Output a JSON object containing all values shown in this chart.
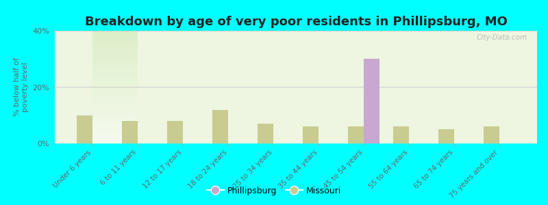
{
  "title": "Breakdown by age of very poor residents in Phillipsburg, MO",
  "ylabel": "% below half of\npoverty level",
  "categories": [
    "Under 6 years",
    "6 to 11 years",
    "12 to 17 years",
    "18 to 24 years",
    "25 to 34 years",
    "35 to 44 years",
    "45 to 54 years",
    "55 to 64 years",
    "65 to 74 years",
    "75 years and over"
  ],
  "phillipsburg_values": [
    0,
    0,
    0,
    0,
    0,
    0,
    30,
    0,
    0,
    0
  ],
  "missouri_values": [
    10,
    8,
    8,
    12,
    7,
    6,
    6,
    6,
    5,
    6
  ],
  "phillipsburg_color": "#c8a8d0",
  "missouri_color": "#c8cc90",
  "ylim": [
    0,
    40
  ],
  "yticks": [
    0,
    20,
    40
  ],
  "ytick_labels": [
    "0%",
    "20%",
    "40%"
  ],
  "background_color": "#00ffff",
  "plot_bg": "#eef5e0",
  "bar_width": 0.35,
  "title_fontsize": 13,
  "legend_labels": [
    "Phillipsburg",
    "Missouri"
  ],
  "watermark": "City-Data.com"
}
